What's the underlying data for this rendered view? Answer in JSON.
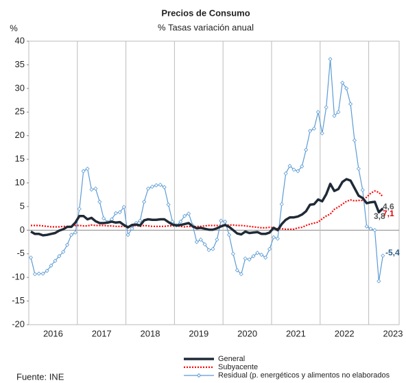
{
  "chart_data": {
    "type": "line",
    "title": "Precios de Consumo",
    "subtitle": "% Tasas variación anual",
    "y_label": "%",
    "source": "Fuente: INE",
    "year_labels": [
      "2016",
      "2017",
      "2018",
      "2019",
      "2020",
      "2021",
      "2022",
      "2023"
    ],
    "ylim": [
      -20,
      40
    ],
    "yticks": [
      -20,
      -15,
      -10,
      -5,
      0,
      5,
      10,
      15,
      20,
      25,
      30,
      35,
      40
    ],
    "annotations": [
      "3,8"
    ],
    "series": [
      {
        "name": "General",
        "color": "#1f2a36",
        "end_label": "4,6",
        "values": [
          -0.3,
          -0.8,
          -0.8,
          -1.1,
          -1.0,
          -0.8,
          -0.6,
          -0.1,
          0.2,
          0.7,
          0.7,
          1.6,
          3.0,
          3.0,
          2.3,
          2.6,
          1.9,
          1.5,
          1.5,
          1.6,
          1.8,
          1.6,
          1.7,
          1.1,
          0.6,
          1.1,
          1.2,
          1.0,
          2.1,
          2.3,
          2.2,
          2.2,
          2.3,
          2.3,
          1.7,
          1.2,
          1.0,
          1.1,
          1.3,
          1.5,
          0.8,
          0.4,
          0.5,
          0.3,
          0.1,
          0.1,
          0.4,
          0.8,
          1.1,
          0.7,
          0.0,
          -0.7,
          -0.9,
          -0.3,
          -0.6,
          -0.5,
          -0.4,
          -0.8,
          -0.8,
          -0.5,
          0.5,
          0.0,
          1.3,
          2.2,
          2.7,
          2.7,
          2.9,
          3.3,
          4.0,
          5.4,
          5.5,
          6.5,
          6.1,
          7.6,
          9.8,
          8.3,
          8.7,
          10.2,
          10.8,
          10.5,
          8.9,
          7.3,
          6.8,
          5.7,
          5.9,
          6.0,
          3.8,
          4.6
        ]
      },
      {
        "name": "Subyacente",
        "color": "#ff0000",
        "end_label": "7,1",
        "values": [
          1.0,
          1.0,
          1.0,
          0.9,
          0.8,
          0.7,
          0.7,
          0.7,
          0.8,
          0.8,
          0.8,
          1.0,
          1.0,
          0.9,
          0.9,
          1.1,
          1.0,
          1.0,
          1.0,
          0.9,
          0.9,
          0.8,
          0.8,
          0.8,
          0.8,
          0.9,
          1.0,
          0.8,
          1.0,
          0.9,
          0.8,
          0.8,
          0.8,
          0.8,
          0.9,
          0.9,
          0.9,
          0.8,
          0.7,
          0.8,
          0.7,
          0.8,
          0.8,
          0.9,
          1.0,
          1.0,
          1.0,
          1.0,
          1.1,
          1.1,
          1.1,
          1.0,
          1.0,
          0.9,
          0.8,
          0.7,
          0.6,
          0.5,
          0.5,
          0.6,
          0.5,
          0.3,
          0.3,
          0.2,
          0.2,
          0.2,
          0.5,
          0.6,
          1.0,
          1.3,
          1.5,
          1.7,
          2.4,
          3.0,
          3.4,
          4.4,
          4.9,
          5.5,
          6.1,
          6.4,
          6.2,
          6.3,
          6.3,
          7.0,
          7.8,
          8.3,
          8.0,
          7.1
        ]
      },
      {
        "name": "Residual (p. energéticos y alimentos no elaborados",
        "color": "#5b9bd5",
        "end_label": "-5,4",
        "values": [
          -5.8,
          -9.3,
          -9.2,
          -9.2,
          -8.6,
          -7.5,
          -6.5,
          -5.5,
          -4.6,
          -3.1,
          -1.0,
          -0.5,
          4.5,
          12.5,
          13.0,
          8.6,
          8.8,
          6.0,
          2.5,
          1.7,
          2.3,
          3.6,
          3.8,
          4.9,
          -1.0,
          0.3,
          1.5,
          2.0,
          6.0,
          8.8,
          9.2,
          9.5,
          9.6,
          9.1,
          5.4,
          1.8,
          1.0,
          1.8,
          3.0,
          3.5,
          1.0,
          -2.5,
          -2.0,
          -3.0,
          -4.2,
          -4.0,
          -2.0,
          2.0,
          1.8,
          -1.0,
          -5.0,
          -8.5,
          -9.3,
          -6.0,
          -6.2,
          -5.5,
          -4.8,
          -5.2,
          -5.8,
          -4.0,
          -1.5,
          -1.8,
          5.5,
          12.0,
          13.6,
          12.8,
          12.5,
          13.5,
          17.0,
          21.0,
          21.5,
          25.0,
          20.5,
          26.0,
          36.2,
          24.2,
          25.0,
          31.2,
          30.0,
          26.7,
          19.0,
          13.0,
          8.5,
          0.8,
          0.3,
          0.0,
          -10.8,
          -5.4
        ]
      }
    ]
  }
}
